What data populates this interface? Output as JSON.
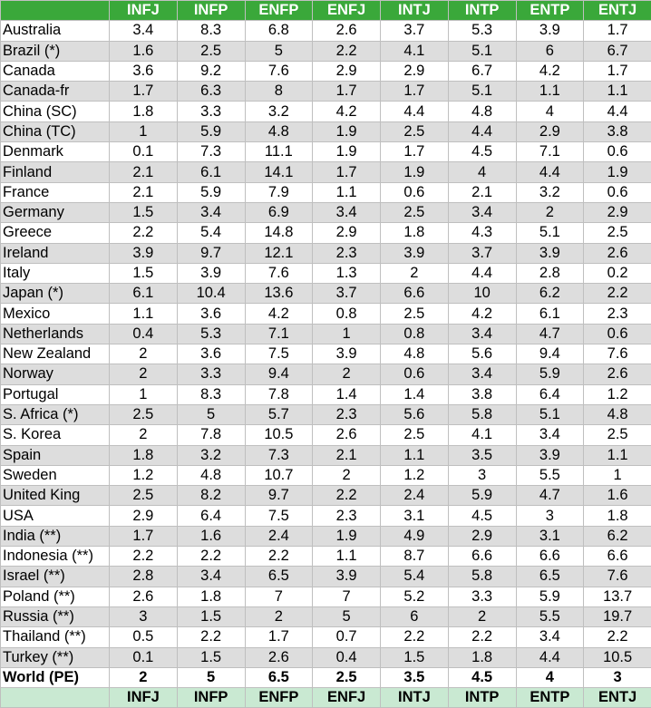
{
  "table": {
    "columns": [
      "INFJ",
      "INFP",
      "ENFP",
      "ENFJ",
      "INTJ",
      "INTP",
      "ENTP",
      "ENTJ"
    ],
    "rows": [
      {
        "country": "Australia",
        "values": [
          "3.4",
          "8.3",
          "6.8",
          "2.6",
          "3.7",
          "5.3",
          "3.9",
          "1.7"
        ]
      },
      {
        "country": "Brazil (*)",
        "values": [
          "1.6",
          "2.5",
          "5",
          "2.2",
          "4.1",
          "5.1",
          "6",
          "6.7"
        ]
      },
      {
        "country": "Canada",
        "values": [
          "3.6",
          "9.2",
          "7.6",
          "2.9",
          "2.9",
          "6.7",
          "4.2",
          "1.7"
        ]
      },
      {
        "country": "Canada-fr",
        "values": [
          "1.7",
          "6.3",
          "8",
          "1.7",
          "1.7",
          "5.1",
          "1.1",
          "1.1"
        ]
      },
      {
        "country": "China (SC)",
        "values": [
          "1.8",
          "3.3",
          "3.2",
          "4.2",
          "4.4",
          "4.8",
          "4",
          "4.4"
        ]
      },
      {
        "country": "China (TC)",
        "values": [
          "1",
          "5.9",
          "4.8",
          "1.9",
          "2.5",
          "4.4",
          "2.9",
          "3.8"
        ]
      },
      {
        "country": "Denmark",
        "values": [
          "0.1",
          "7.3",
          "11.1",
          "1.9",
          "1.7",
          "4.5",
          "7.1",
          "0.6"
        ]
      },
      {
        "country": "Finland",
        "values": [
          "2.1",
          "6.1",
          "14.1",
          "1.7",
          "1.9",
          "4",
          "4.4",
          "1.9"
        ]
      },
      {
        "country": "France",
        "values": [
          "2.1",
          "5.9",
          "7.9",
          "1.1",
          "0.6",
          "2.1",
          "3.2",
          "0.6"
        ]
      },
      {
        "country": "Germany",
        "values": [
          "1.5",
          "3.4",
          "6.9",
          "3.4",
          "2.5",
          "3.4",
          "2",
          "2.9"
        ]
      },
      {
        "country": "Greece",
        "values": [
          "2.2",
          "5.4",
          "14.8",
          "2.9",
          "1.8",
          "4.3",
          "5.1",
          "2.5"
        ]
      },
      {
        "country": "Ireland",
        "values": [
          "3.9",
          "9.7",
          "12.1",
          "2.3",
          "3.9",
          "3.7",
          "3.9",
          "2.6"
        ]
      },
      {
        "country": "Italy",
        "values": [
          "1.5",
          "3.9",
          "7.6",
          "1.3",
          "2",
          "4.4",
          "2.8",
          "0.2"
        ]
      },
      {
        "country": "Japan (*)",
        "values": [
          "6.1",
          "10.4",
          "13.6",
          "3.7",
          "6.6",
          "10",
          "6.2",
          "2.2"
        ]
      },
      {
        "country": "Mexico",
        "values": [
          "1.1",
          "3.6",
          "4.2",
          "0.8",
          "2.5",
          "4.2",
          "6.1",
          "2.3"
        ]
      },
      {
        "country": "Netherlands",
        "values": [
          "0.4",
          "5.3",
          "7.1",
          "1",
          "0.8",
          "3.4",
          "4.7",
          "0.6"
        ]
      },
      {
        "country": "New Zealand",
        "values": [
          "2",
          "3.6",
          "7.5",
          "3.9",
          "4.8",
          "5.6",
          "9.4",
          "7.6"
        ]
      },
      {
        "country": "Norway",
        "values": [
          "2",
          "3.3",
          "9.4",
          "2",
          "0.6",
          "3.4",
          "5.9",
          "2.6"
        ]
      },
      {
        "country": "Portugal",
        "values": [
          "1",
          "8.3",
          "7.8",
          "1.4",
          "1.4",
          "3.8",
          "6.4",
          "1.2"
        ]
      },
      {
        "country": "S. Africa (*)",
        "values": [
          "2.5",
          "5",
          "5.7",
          "2.3",
          "5.6",
          "5.8",
          "5.1",
          "4.8"
        ]
      },
      {
        "country": "S. Korea",
        "values": [
          "2",
          "7.8",
          "10.5",
          "2.6",
          "2.5",
          "4.1",
          "3.4",
          "2.5"
        ]
      },
      {
        "country": "Spain",
        "values": [
          "1.8",
          "3.2",
          "7.3",
          "2.1",
          "1.1",
          "3.5",
          "3.9",
          "1.1"
        ]
      },
      {
        "country": "Sweden",
        "values": [
          "1.2",
          "4.8",
          "10.7",
          "2",
          "1.2",
          "3",
          "5.5",
          "1"
        ]
      },
      {
        "country": "United King",
        "values": [
          "2.5",
          "8.2",
          "9.7",
          "2.2",
          "2.4",
          "5.9",
          "4.7",
          "1.6"
        ]
      },
      {
        "country": "USA",
        "values": [
          "2.9",
          "6.4",
          "7.5",
          "2.3",
          "3.1",
          "4.5",
          "3",
          "1.8"
        ]
      },
      {
        "country": "India (**)",
        "values": [
          "1.7",
          "1.6",
          "2.4",
          "1.9",
          "4.9",
          "2.9",
          "3.1",
          "6.2"
        ]
      },
      {
        "country": "Indonesia (**)",
        "values": [
          "2.2",
          "2.2",
          "2.2",
          "1.1",
          "8.7",
          "6.6",
          "6.6",
          "6.6"
        ]
      },
      {
        "country": "Israel (**)",
        "values": [
          "2.8",
          "3.4",
          "6.5",
          "3.9",
          "5.4",
          "5.8",
          "6.5",
          "7.6"
        ]
      },
      {
        "country": "Poland (**)",
        "values": [
          "2.6",
          "1.8",
          "7",
          "7",
          "5.2",
          "3.3",
          "5.9",
          "13.7"
        ]
      },
      {
        "country": "Russia (**)",
        "values": [
          "3",
          "1.5",
          "2",
          "5",
          "6",
          "2",
          "5.5",
          "19.7"
        ]
      },
      {
        "country": "Thailand (**)",
        "values": [
          "0.5",
          "2.2",
          "1.7",
          "0.7",
          "2.2",
          "2.2",
          "3.4",
          "2.2"
        ]
      },
      {
        "country": "Turkey (**)",
        "values": [
          "0.1",
          "1.5",
          "2.6",
          "0.4",
          "1.5",
          "1.8",
          "4.4",
          "10.5"
        ]
      }
    ],
    "world": {
      "country": "World (PE)",
      "values": [
        "2",
        "5",
        "6.5",
        "2.5",
        "3.5",
        "4.5",
        "4",
        "3"
      ]
    },
    "colors": {
      "header_bg": "#3aa83a",
      "header_text": "#ffffff",
      "footer_bg": "#c9e9d2",
      "alt_row_bg": "#dddddd",
      "border": "#bfbfbf"
    }
  }
}
